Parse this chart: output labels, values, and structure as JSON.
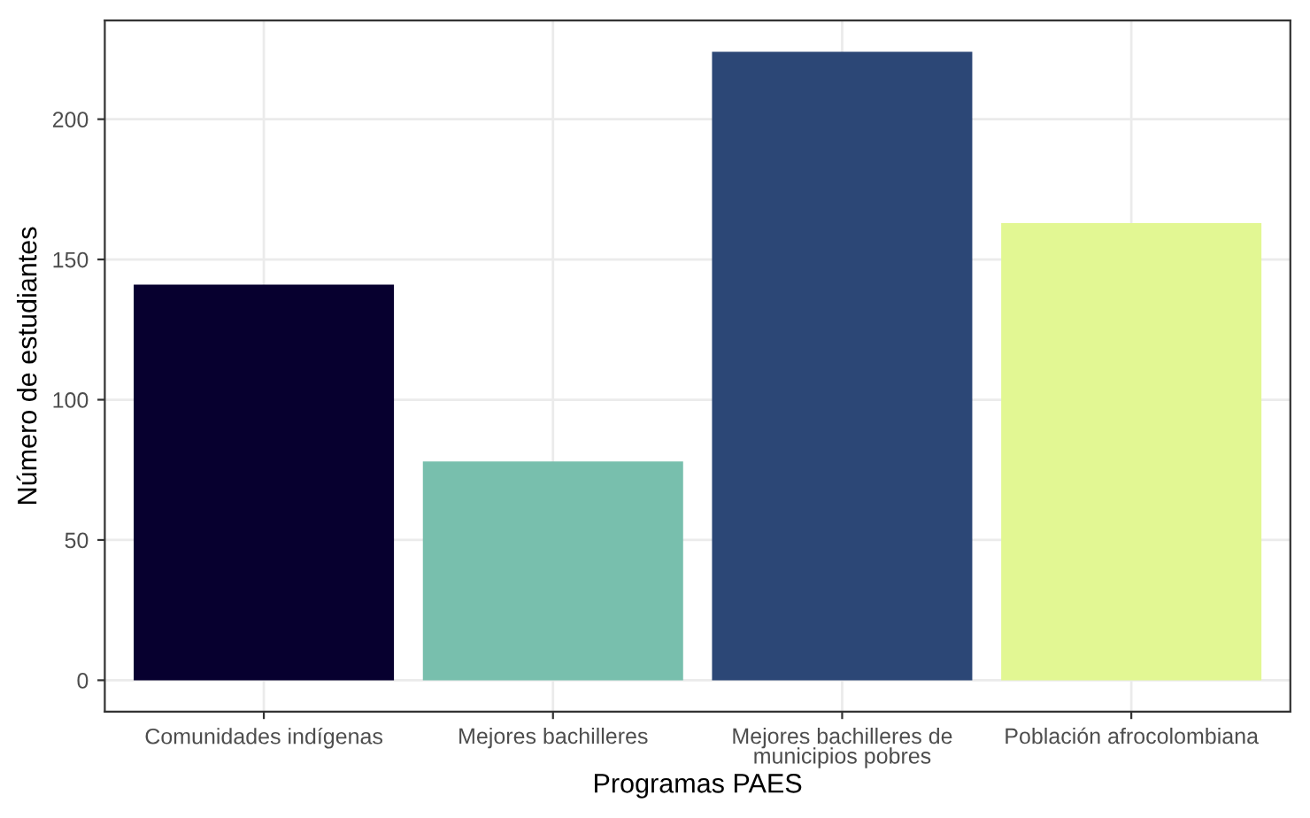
{
  "chart_data": {
    "type": "bar",
    "xlabel": "Programas PAES",
    "ylabel": "Número de estudiantes",
    "categories": [
      "Comunidades indígenas",
      "Mejores bachilleres",
      "Mejores bachilleres de\nmunicipios pobres",
      "Población afrocolombiana"
    ],
    "values": [
      141,
      78,
      224,
      163
    ],
    "colors": [
      "#07002f",
      "#78bfad",
      "#2c4776",
      "#e2f793"
    ],
    "ylim": [
      -11.2,
      235.2
    ],
    "yticks": [
      0,
      50,
      100,
      150,
      200
    ],
    "grid": true,
    "legend": false
  }
}
